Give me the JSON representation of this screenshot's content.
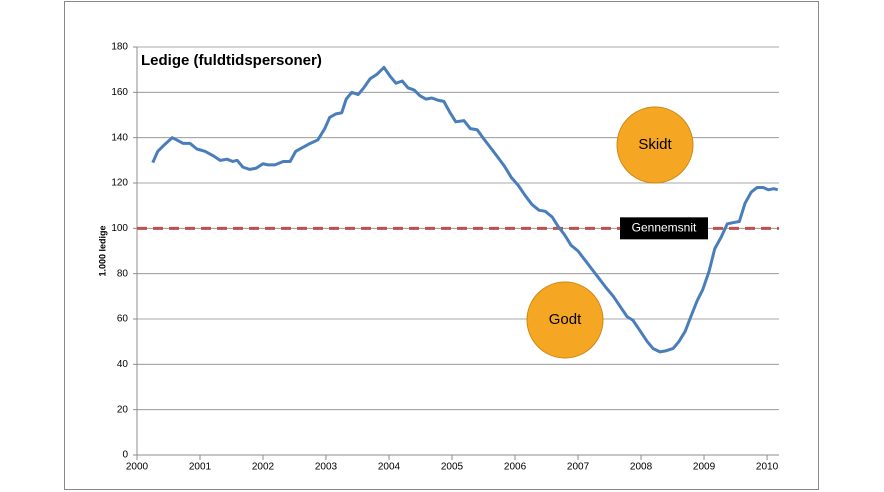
{
  "chart_data": {
    "type": "line",
    "title": "Ledige (fuldtidspersoner)",
    "y_label": "1.000 ledige",
    "x": [
      2000.25,
      2000.33,
      2000.44,
      2000.56,
      2000.63,
      2000.73,
      2000.84,
      2000.95,
      2001.08,
      2001.21,
      2001.32,
      2001.43,
      2001.52,
      2001.59,
      2001.68,
      2001.79,
      2001.89,
      2002.0,
      2002.08,
      2002.19,
      2002.32,
      2002.43,
      2002.52,
      2002.62,
      2002.75,
      2002.87,
      2002.98,
      2003.06,
      2003.16,
      2003.25,
      2003.32,
      2003.41,
      2003.51,
      2003.6,
      2003.7,
      2003.81,
      2003.92,
      2004.02,
      2004.11,
      2004.21,
      2004.3,
      2004.4,
      2004.49,
      2004.59,
      2004.68,
      2004.78,
      2004.87,
      2004.97,
      2005.06,
      2005.19,
      2005.29,
      2005.4,
      2005.49,
      2005.6,
      2005.71,
      2005.83,
      2005.94,
      2006.05,
      2006.16,
      2006.27,
      2006.38,
      2006.48,
      2006.59,
      2006.68,
      2006.79,
      2006.89,
      2007.0,
      2007.11,
      2007.22,
      2007.33,
      2007.44,
      2007.56,
      2007.67,
      2007.78,
      2007.87,
      2007.98,
      2008.1,
      2008.19,
      2008.3,
      2008.4,
      2008.51,
      2008.6,
      2008.7,
      2008.79,
      2008.89,
      2008.98,
      2009.08,
      2009.17,
      2009.27,
      2009.37,
      2009.46,
      2009.56,
      2009.65,
      2009.75,
      2009.84,
      2009.94,
      2010.02,
      2010.11,
      2010.17
    ],
    "series": [
      {
        "name": "Ledige",
        "color": "#4a7ebb",
        "values": [
          129,
          134,
          137,
          140,
          139,
          137.5,
          137.5,
          135,
          134,
          132,
          130,
          130.5,
          129.5,
          130,
          127,
          126,
          126.5,
          128.5,
          128,
          128,
          129.5,
          129.5,
          134,
          135.5,
          137.5,
          139,
          144,
          149,
          150.5,
          151,
          157,
          160,
          159,
          162,
          166,
          168,
          171,
          167,
          164,
          165,
          162,
          161,
          158.5,
          157,
          157.5,
          156.5,
          156,
          151,
          147,
          147.5,
          144,
          143.5,
          140,
          136,
          132,
          127.5,
          122.5,
          119,
          114.5,
          110.5,
          108,
          107.5,
          105,
          101,
          97,
          92.5,
          90,
          86,
          82,
          78,
          74,
          70,
          65.5,
          61,
          59.5,
          55,
          50,
          47,
          45.5,
          46,
          47,
          50,
          54.5,
          61,
          68,
          73,
          81,
          91,
          96,
          102,
          102.5,
          103,
          111,
          116,
          118,
          118,
          117,
          117.5,
          117
        ]
      }
    ],
    "xlim": [
      2000,
      2010.19
    ],
    "xticks": [
      2000,
      2001,
      2002,
      2003,
      2004,
      2005,
      2006,
      2007,
      2008,
      2009,
      2010
    ],
    "ylim": [
      0,
      180
    ],
    "yticks": [
      0,
      20,
      40,
      60,
      80,
      100,
      120,
      140,
      160,
      180
    ],
    "grid": true,
    "reference_line": {
      "value": 100,
      "label": "Gennemsnit",
      "color": "#c0504d"
    },
    "annotations": [
      {
        "text": "Skidt",
        "color": "#f5a623"
      },
      {
        "text": "Godt",
        "color": "#f5a623"
      }
    ]
  }
}
